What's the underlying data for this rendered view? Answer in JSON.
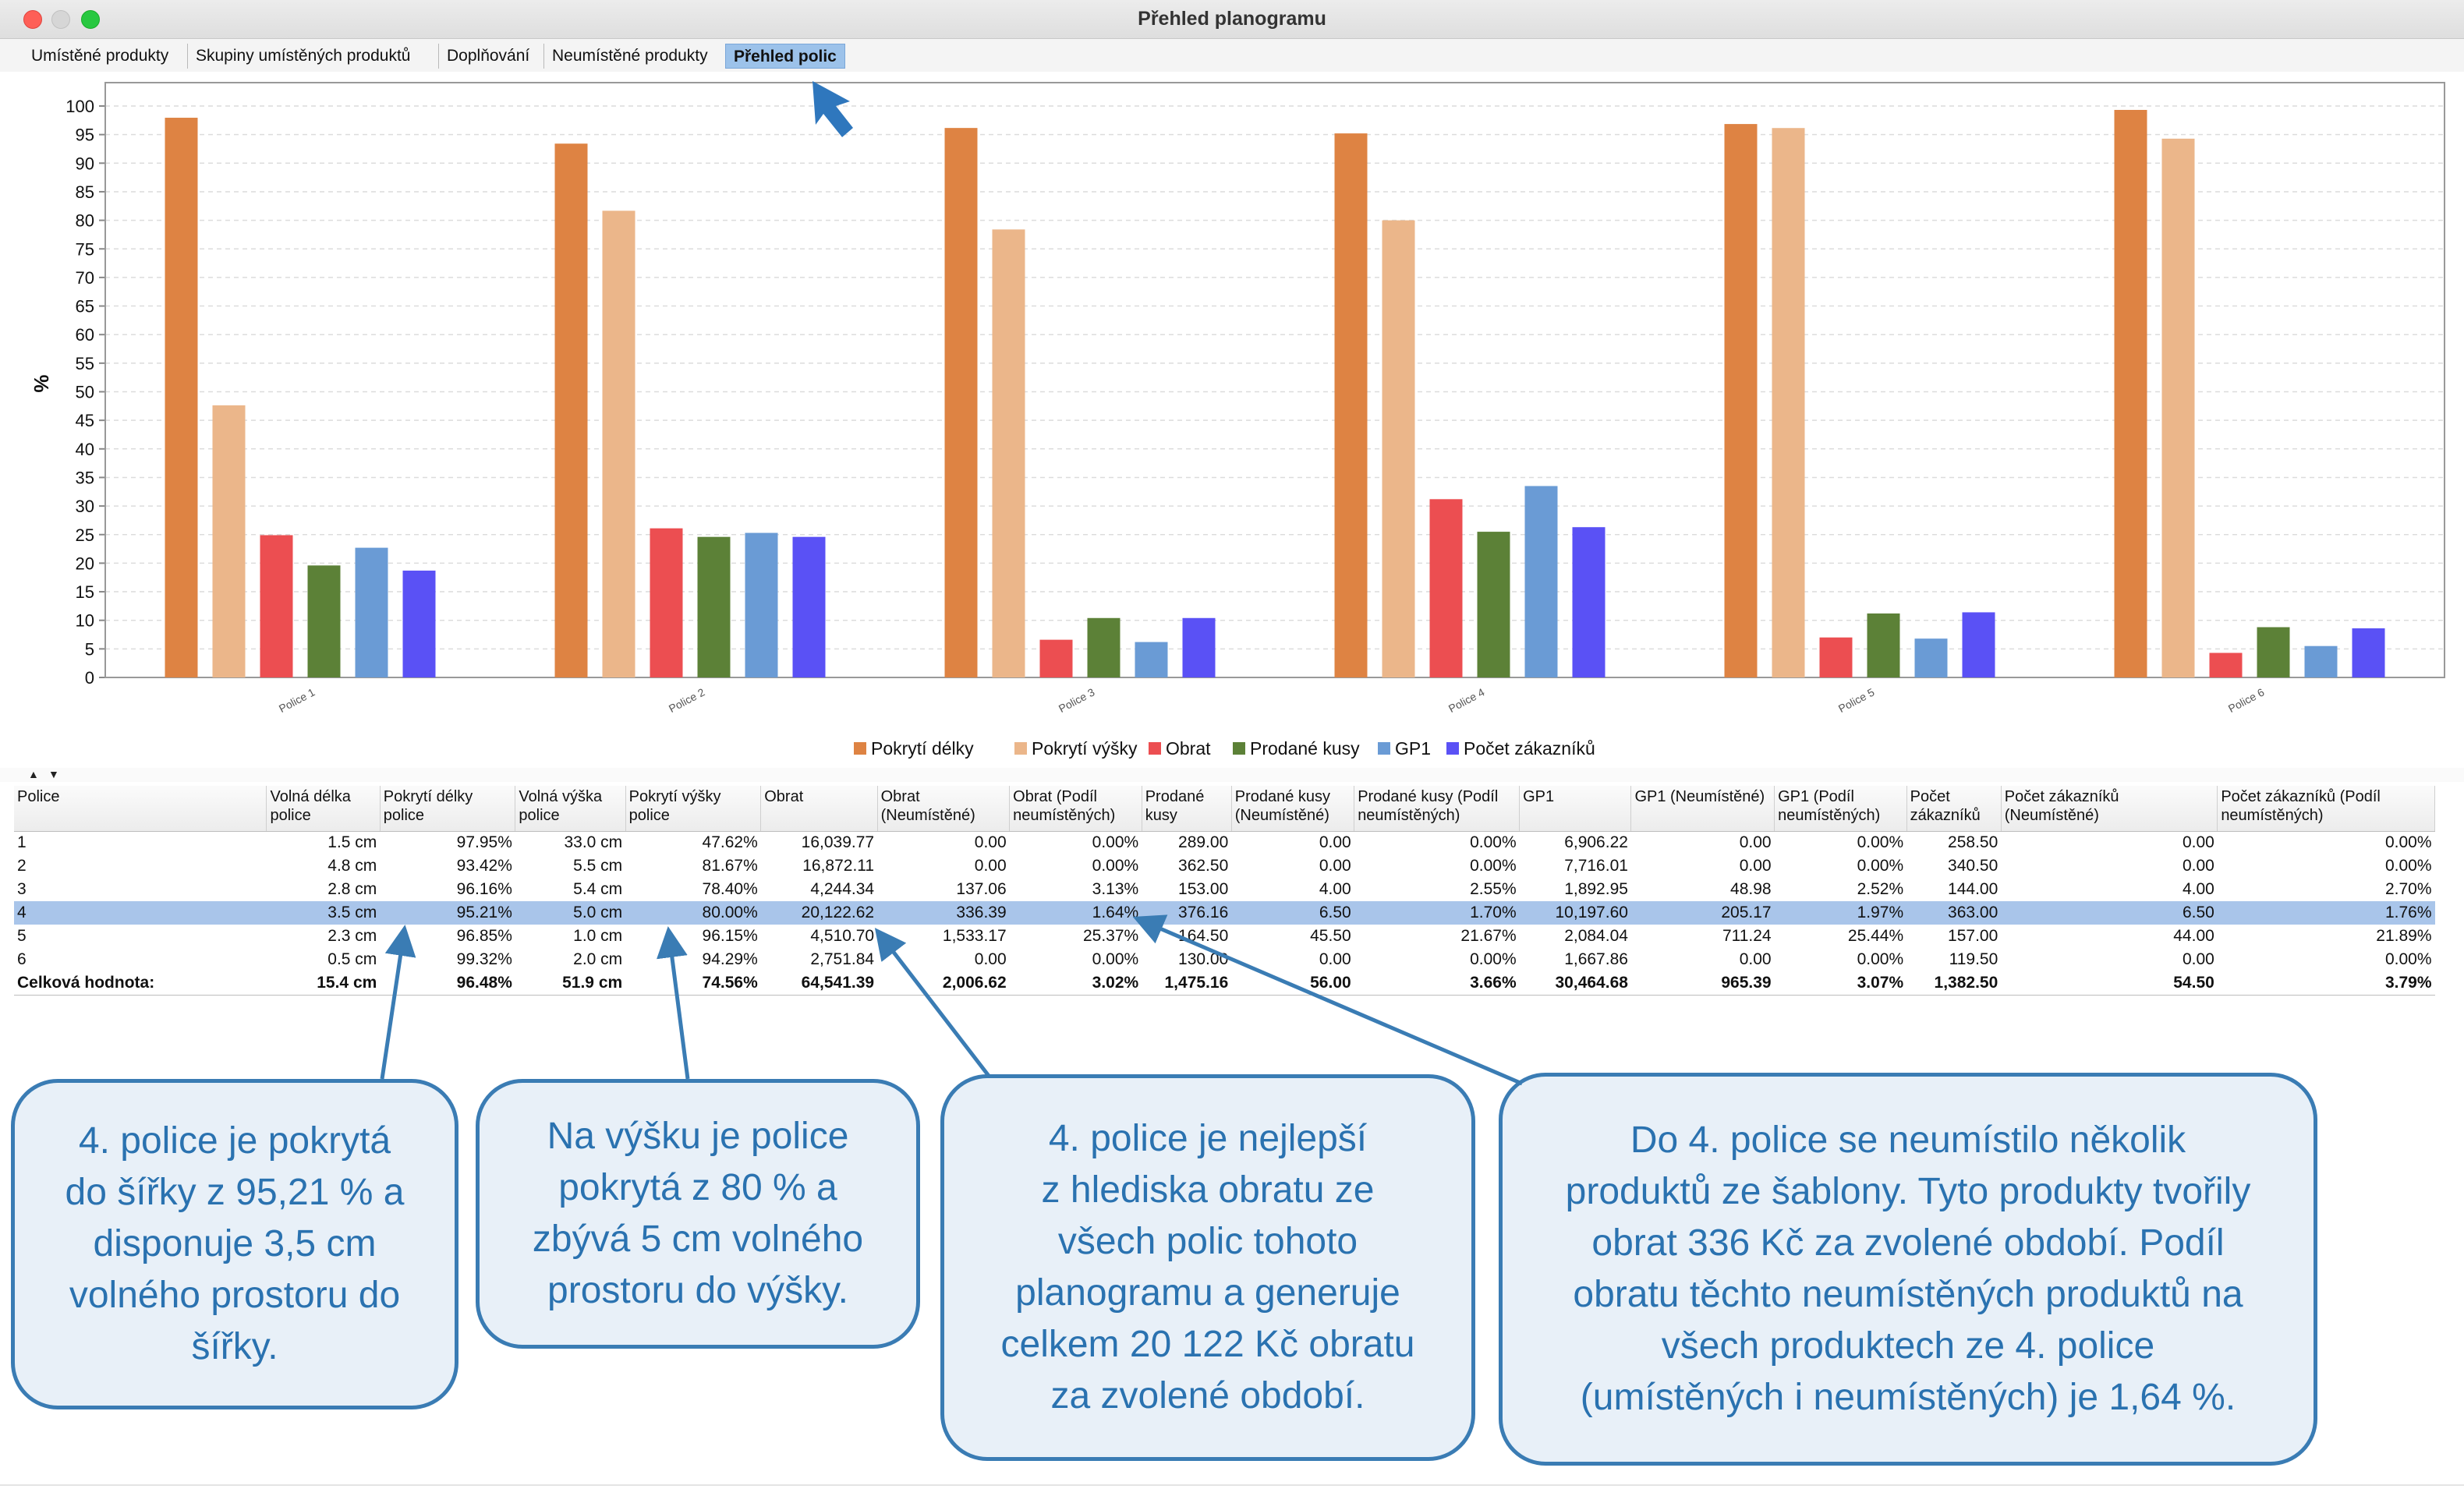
{
  "window": {
    "title": "Přehled planogramu"
  },
  "tabs": [
    {
      "label": "Umístěné produkty"
    },
    {
      "label": "Skupiny umístěných produktů"
    },
    {
      "label": "Doplňování"
    },
    {
      "label": "Neumístěné produkty"
    },
    {
      "label": "Přehled polic",
      "active": true
    }
  ],
  "chart_data": {
    "type": "bar",
    "ylabel": "%",
    "ylim": [
      0,
      100
    ],
    "yticks": [
      0,
      5,
      10,
      15,
      20,
      25,
      30,
      35,
      40,
      45,
      50,
      55,
      60,
      65,
      70,
      75,
      80,
      85,
      90,
      95,
      100
    ],
    "grid": true,
    "legend_position": "bottom",
    "categories": [
      "Police 1",
      "Police 2",
      "Police 3",
      "Police 4",
      "Police 5",
      "Police 6"
    ],
    "series": [
      {
        "name": "Pokrytí délky",
        "color": "#de8343",
        "values": [
          97.95,
          93.42,
          96.16,
          95.21,
          96.85,
          99.32
        ]
      },
      {
        "name": "Pokrytí výšky",
        "color": "#ebb68a",
        "values": [
          47.62,
          81.67,
          78.4,
          80.0,
          96.15,
          94.29
        ]
      },
      {
        "name": "Obrat",
        "color": "#ec4e51",
        "values": [
          24.9,
          26.1,
          6.6,
          31.2,
          7.0,
          4.3
        ]
      },
      {
        "name": "Prodané kusy",
        "color": "#5c8137",
        "values": [
          19.6,
          24.6,
          10.4,
          25.5,
          11.2,
          8.8
        ]
      },
      {
        "name": "GP1",
        "color": "#6a9bd5",
        "values": [
          22.7,
          25.3,
          6.2,
          33.5,
          6.8,
          5.5
        ]
      },
      {
        "name": "Počet zákazníků",
        "color": "#5a51f5",
        "values": [
          18.7,
          24.6,
          10.4,
          26.3,
          11.4,
          8.6
        ]
      }
    ]
  },
  "table": {
    "headers": [
      "Police",
      "Volná délka police",
      "Pokrytí délky police",
      "Volná výška police",
      "Pokrytí výšky police",
      "Obrat",
      "Obrat (Neumístěné)",
      "Obrat (Podíl neumístěných)",
      "Prodané kusy",
      "Prodané kusy (Neumístěné)",
      "Prodané kusy (Podíl neumístěných)",
      "GP1",
      "GP1 (Neumístěné)",
      "GP1 (Podíl neumístěných)",
      "Počet zákazníků",
      "Počet zákazníků (Neumístěné)",
      "Počet zákazníků (Podíl neumístěných)"
    ],
    "rows": [
      [
        "1",
        "1.5 cm",
        "97.95%",
        "33.0 cm",
        "47.62%",
        "16,039.77",
        "0.00",
        "0.00%",
        "289.00",
        "0.00",
        "0.00%",
        "6,906.22",
        "0.00",
        "0.00%",
        "258.50",
        "0.00",
        "0.00%"
      ],
      [
        "2",
        "4.8 cm",
        "93.42%",
        "5.5 cm",
        "81.67%",
        "16,872.11",
        "0.00",
        "0.00%",
        "362.50",
        "0.00",
        "0.00%",
        "7,716.01",
        "0.00",
        "0.00%",
        "340.50",
        "0.00",
        "0.00%"
      ],
      [
        "3",
        "2.8 cm",
        "96.16%",
        "5.4 cm",
        "78.40%",
        "4,244.34",
        "137.06",
        "3.13%",
        "153.00",
        "4.00",
        "2.55%",
        "1,892.95",
        "48.98",
        "2.52%",
        "144.00",
        "4.00",
        "2.70%"
      ],
      [
        "4",
        "3.5 cm",
        "95.21%",
        "5.0 cm",
        "80.00%",
        "20,122.62",
        "336.39",
        "1.64%",
        "376.16",
        "6.50",
        "1.70%",
        "10,197.60",
        "205.17",
        "1.97%",
        "363.00",
        "6.50",
        "1.76%"
      ],
      [
        "5",
        "2.3 cm",
        "96.85%",
        "1.0 cm",
        "96.15%",
        "4,510.70",
        "1,533.17",
        "25.37%",
        "164.50",
        "45.50",
        "21.67%",
        "2,084.04",
        "711.24",
        "25.44%",
        "157.00",
        "44.00",
        "21.89%"
      ],
      [
        "6",
        "0.5 cm",
        "99.32%",
        "2.0 cm",
        "94.29%",
        "2,751.84",
        "0.00",
        "0.00%",
        "130.00",
        "0.00",
        "0.00%",
        "1,667.86",
        "0.00",
        "0.00%",
        "119.50",
        "0.00",
        "0.00%"
      ]
    ],
    "selected_row": 3,
    "total": [
      "Celková hodnota:",
      "15.4 cm",
      "96.48%",
      "51.9 cm",
      "74.56%",
      "64,541.39",
      "2,006.62",
      "3.02%",
      "1,475.16",
      "56.00",
      "3.66%",
      "30,464.68",
      "965.39",
      "3.07%",
      "1,382.50",
      "54.50",
      "3.79%"
    ]
  },
  "callouts": [
    {
      "text": "4. police je pokrytá\ndo šířky z 95,21 % a\ndisponuje 3,5 cm\nvolného prostoru do\nšířky."
    },
    {
      "text": "Na výšku je police\npokrytá z 80 % a\nzbývá 5 cm volného\nprostoru do výšky."
    },
    {
      "text": "4. police je nejlepší\nz hlediska obratu ze\nvšech polic tohoto\nplanogramu a generuje\ncelkem 20 122 Kč obratu\nza zvolené období."
    },
    {
      "text": "Do 4. police se neumístilo několik\nproduktů ze šablony. Tyto produkty tvořily\nobrat 336 Kč za zvolené období. Podíl\nobratu těchto neumístěných produktů na\nvšech produktech ze 4. police\n(umístěných i neumístěných) je 1,64 %."
    }
  ],
  "colors": {
    "callout_border": "#3a7cb4",
    "callout_text": "#2a72b0",
    "arrow": "#3a7cb4",
    "selection": "#a9c5ea"
  }
}
